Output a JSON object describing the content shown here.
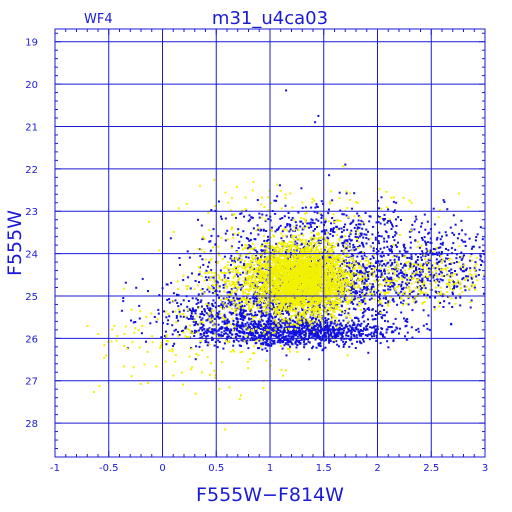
{
  "chart_data": {
    "type": "scatter",
    "title": "m31_u4ca03",
    "corner_label": "WF4",
    "xlabel": "F555W−F814W",
    "ylabel": "F555W",
    "xlim": [
      -1,
      3
    ],
    "ylim": [
      18.7,
      28.8
    ],
    "y_inverted": true,
    "grid": true,
    "x_ticks": [
      -1,
      -0.5,
      0,
      0.5,
      1,
      1.5,
      2,
      2.5,
      3
    ],
    "x_tick_labels": [
      "-1",
      "-0.5",
      "0",
      "0.5",
      "1",
      "1.5",
      "2",
      "2.5",
      "3"
    ],
    "y_ticks": [
      19,
      20,
      21,
      22,
      23,
      24,
      25,
      26,
      27,
      28
    ],
    "y_tick_labels": [
      "19",
      "20",
      "21",
      "22",
      "23",
      "24",
      "25",
      "26",
      "27",
      "28"
    ],
    "series": [
      {
        "color": "#1010e0",
        "approx_count": 3600,
        "clusters": [
          {
            "cx": 1.35,
            "cy": 24.6,
            "sx": 0.45,
            "sy": 0.55,
            "n": 1400
          },
          {
            "cx": 1.2,
            "cy": 25.85,
            "sx": 0.45,
            "sy": 0.18,
            "n": 1100
          },
          {
            "cx": 2.4,
            "cy": 24.3,
            "sx": 0.35,
            "sy": 0.5,
            "n": 500
          },
          {
            "cx": 0.6,
            "cy": 25.4,
            "sx": 0.35,
            "sy": 0.3,
            "n": 350
          },
          {
            "cx": 1.5,
            "cy": 23.3,
            "sx": 0.5,
            "sy": 0.3,
            "n": 250
          }
        ],
        "notable_points": [
          {
            "x": 1.15,
            "y": 20.15
          },
          {
            "x": 1.45,
            "y": 20.75
          },
          {
            "x": 1.42,
            "y": 20.9
          },
          {
            "x": 1.7,
            "y": 21.9
          },
          {
            "x": 1.55,
            "y": 22.15
          }
        ]
      },
      {
        "color": "#f2f200",
        "approx_count": 4200,
        "clusters": [
          {
            "cx": 1.3,
            "cy": 24.6,
            "sx": 0.22,
            "sy": 0.42,
            "n": 3200
          },
          {
            "cx": 0.8,
            "cy": 24.6,
            "sx": 0.25,
            "sy": 0.45,
            "n": 350
          },
          {
            "cx": 2.3,
            "cy": 24.6,
            "sx": 0.45,
            "sy": 0.35,
            "n": 350
          },
          {
            "cx": 0.4,
            "cy": 26.0,
            "sx": 0.5,
            "sy": 0.6,
            "n": 200
          },
          {
            "cx": 1.3,
            "cy": 23.0,
            "sx": 0.6,
            "sy": 0.35,
            "n": 100
          }
        ]
      }
    ]
  }
}
